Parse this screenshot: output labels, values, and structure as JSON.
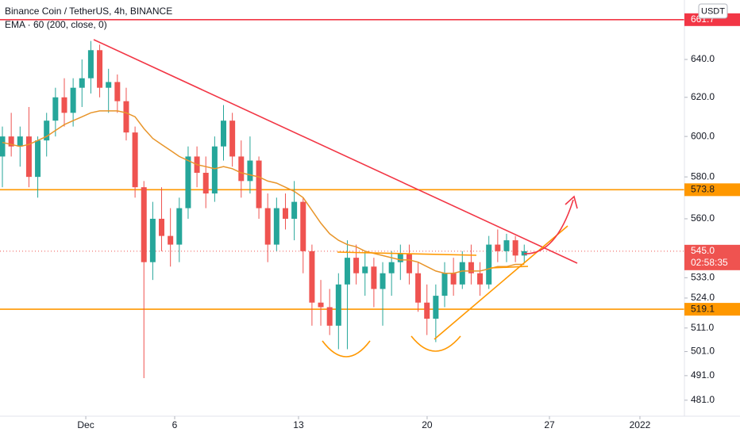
{
  "chart_data": {
    "type": "candlestick",
    "title": "Binance Coin / TetherUS, 4h, BINANCE",
    "indicator": {
      "name": "EMA · 60 (200, close, 0)",
      "color": "#e8952a",
      "values": [
        597,
        596,
        595,
        596,
        598,
        600,
        603,
        606,
        608,
        610,
        612,
        613,
        613,
        613,
        612,
        610,
        604,
        599,
        596,
        593,
        590,
        588,
        586,
        585,
        584,
        585,
        584,
        582,
        581,
        580,
        578,
        577,
        575,
        573,
        570,
        564,
        558,
        553,
        550,
        548,
        547,
        545,
        544,
        543,
        542,
        541,
        541,
        540,
        538,
        536,
        535,
        535,
        536,
        536,
        536,
        537,
        538,
        538,
        539,
        539
      ]
    },
    "currency": "USDT",
    "up_color": "#26a69a",
    "down_color": "#ef5350",
    "candles": {
      "open": [
        590,
        600,
        595,
        600,
        580,
        598,
        608,
        620,
        612,
        625,
        630,
        645,
        625,
        628,
        618,
        602,
        575,
        540,
        560,
        552,
        548,
        565,
        590,
        582,
        572,
        595,
        608,
        590,
        578,
        588,
        565,
        548,
        565,
        560,
        568,
        545,
        522,
        520,
        512,
        530,
        542,
        535,
        538,
        528,
        535,
        540,
        544,
        535,
        522,
        515,
        525,
        535,
        530,
        540,
        535,
        530,
        548,
        545,
        550,
        543
      ],
      "high": [
        605,
        612,
        605,
        615,
        600,
        612,
        625,
        630,
        630,
        640,
        650,
        648,
        635,
        632,
        625,
        605,
        578,
        568,
        575,
        565,
        570,
        595,
        595,
        590,
        600,
        616,
        612,
        598,
        600,
        590,
        572,
        570,
        572,
        578,
        570,
        548,
        532,
        528,
        535,
        550,
        548,
        545,
        542,
        540,
        545,
        548,
        548,
        540,
        530,
        530,
        540,
        542,
        545,
        548,
        540,
        552,
        555,
        553,
        552,
        548
      ],
      "low": [
        575,
        590,
        585,
        575,
        570,
        590,
        600,
        605,
        605,
        615,
        622,
        620,
        612,
        612,
        598,
        570,
        490,
        532,
        545,
        538,
        540,
        560,
        575,
        565,
        568,
        588,
        585,
        570,
        572,
        560,
        540,
        545,
        555,
        550,
        535,
        512,
        512,
        508,
        502,
        502,
        530,
        525,
        520,
        512,
        525,
        532,
        530,
        518,
        508,
        505,
        520,
        525,
        528,
        530,
        525,
        528,
        540,
        540,
        540,
        540
      ],
      "close": [
        600,
        595,
        600,
        580,
        598,
        608,
        620,
        612,
        625,
        630,
        645,
        625,
        628,
        618,
        602,
        575,
        540,
        560,
        552,
        548,
        565,
        590,
        582,
        572,
        595,
        608,
        590,
        578,
        588,
        565,
        548,
        565,
        560,
        568,
        545,
        522,
        520,
        512,
        530,
        542,
        535,
        538,
        528,
        535,
        540,
        544,
        535,
        522,
        515,
        525,
        535,
        530,
        540,
        535,
        530,
        548,
        545,
        550,
        543,
        545
      ]
    },
    "xlim": [
      -0.27,
      77.11
    ],
    "xticks": [
      {
        "value": 9.43,
        "label": "Dec"
      },
      {
        "value": 19.48,
        "label": "6"
      },
      {
        "value": 33.48,
        "label": "13"
      },
      {
        "value": 48.02,
        "label": "20"
      },
      {
        "value": 61.85,
        "label": "27"
      },
      {
        "value": 72.08,
        "label": "2022"
      }
    ],
    "ylim": [
      474.6,
      672.7
    ],
    "log_scale": true,
    "grid": false,
    "yticks": [
      {
        "value": 640,
        "label": "640.0"
      },
      {
        "value": 620,
        "label": "620.0"
      },
      {
        "value": 600,
        "label": "600.0"
      },
      {
        "value": 580,
        "label": "580.0"
      },
      {
        "value": 560,
        "label": "560.0"
      },
      {
        "value": 533,
        "label": "533.0"
      },
      {
        "value": 524,
        "label": "524.0"
      },
      {
        "value": 511,
        "label": "511.0"
      },
      {
        "value": 501,
        "label": "501.0"
      },
      {
        "value": 491,
        "label": "491.0"
      },
      {
        "value": 481,
        "label": "481.0"
      }
    ],
    "levels": [
      {
        "value": 661.7,
        "color": "#f23645",
        "text_color": "#ffffff"
      },
      {
        "value": 573.8,
        "color": "#ff9800",
        "text_color": "#131722"
      },
      {
        "value": 519.1,
        "color": "#ff9800",
        "text_color": "#131722"
      }
    ],
    "last_price": {
      "value": 545,
      "label": "545.0",
      "countdown": "02:58:35",
      "color": "#ef5350"
    }
  }
}
